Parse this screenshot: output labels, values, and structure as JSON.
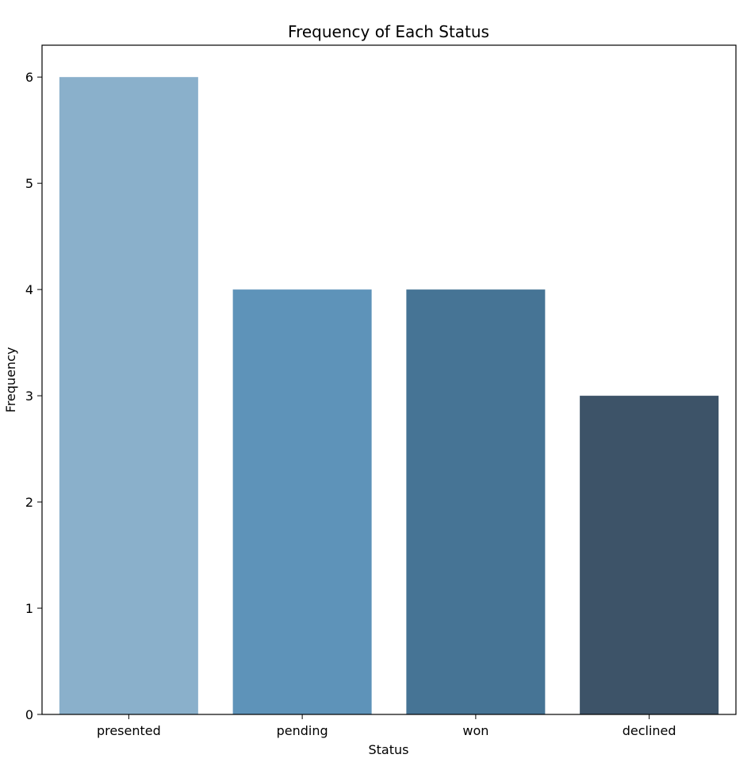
{
  "chart_data": {
    "type": "bar",
    "title": "Frequency of Each Status",
    "xlabel": "Status",
    "ylabel": "Frequency",
    "categories": [
      "presented",
      "pending",
      "won",
      "declined"
    ],
    "values": [
      6,
      4,
      4,
      3
    ],
    "colors": [
      "#8ab0cb",
      "#5e93b9",
      "#467495",
      "#3d5368"
    ],
    "ylim": [
      0,
      6.3
    ],
    "yticks": [
      0,
      1,
      2,
      3,
      4,
      5,
      6
    ],
    "grid": false,
    "legend": "none"
  }
}
